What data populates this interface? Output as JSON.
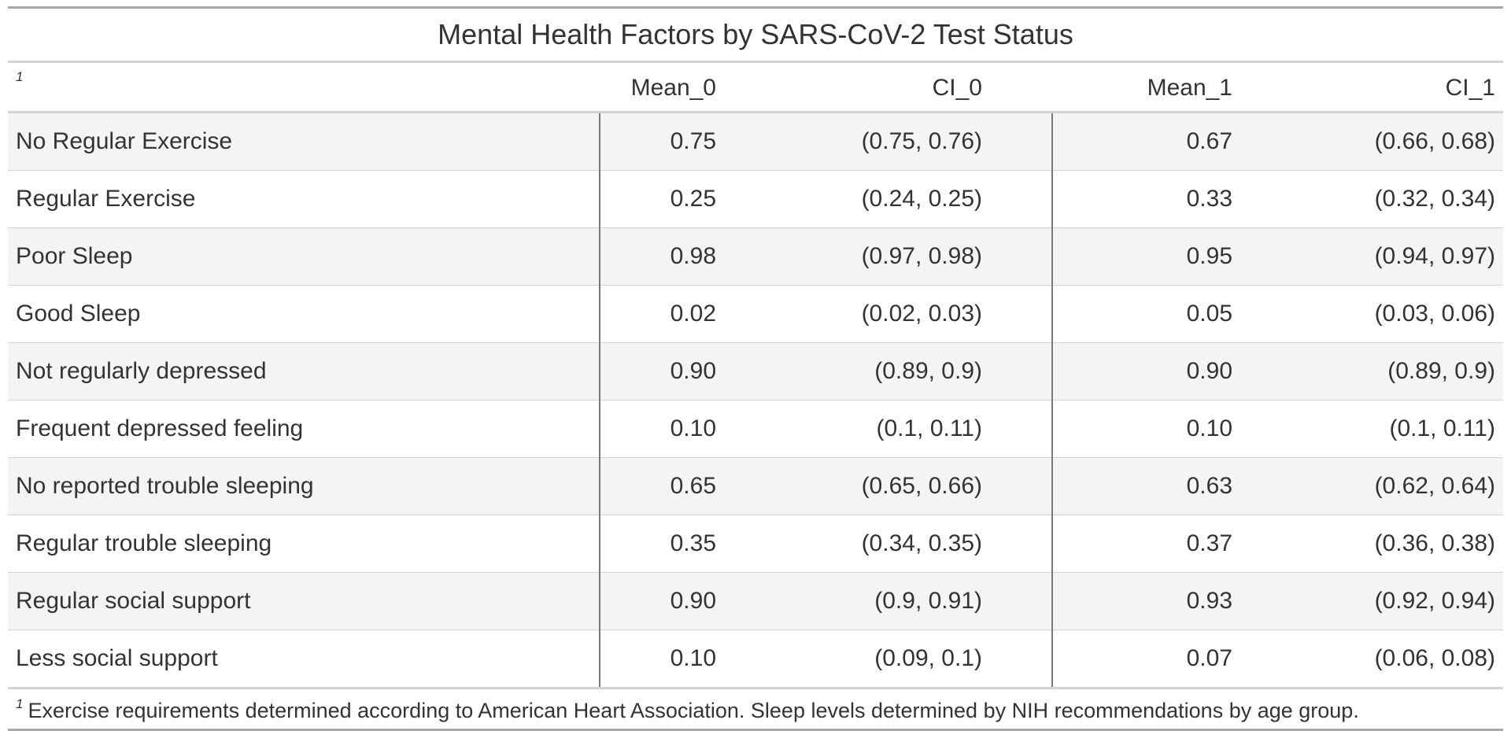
{
  "chart_data": {
    "type": "table",
    "title": "Mental Health Factors by SARS-CoV-2 Test Status",
    "header_footnote_mark": "1",
    "columns": [
      "Mean_0",
      "CI_0",
      "Mean_1",
      "CI_1"
    ],
    "rows": [
      {
        "label": "No Regular Exercise",
        "mean_0": "0.75",
        "ci_0": "(0.75, 0.76)",
        "mean_1": "0.67",
        "ci_1": "(0.66, 0.68)"
      },
      {
        "label": "Regular Exercise",
        "mean_0": "0.25",
        "ci_0": "(0.24, 0.25)",
        "mean_1": "0.33",
        "ci_1": "(0.32, 0.34)"
      },
      {
        "label": "Poor Sleep",
        "mean_0": "0.98",
        "ci_0": "(0.97, 0.98)",
        "mean_1": "0.95",
        "ci_1": "(0.94, 0.97)"
      },
      {
        "label": "Good Sleep",
        "mean_0": "0.02",
        "ci_0": "(0.02, 0.03)",
        "mean_1": "0.05",
        "ci_1": "(0.03, 0.06)"
      },
      {
        "label": "Not regularly depressed",
        "mean_0": "0.90",
        "ci_0": "(0.89, 0.9)",
        "mean_1": "0.90",
        "ci_1": "(0.89, 0.9)"
      },
      {
        "label": "Frequent depressed feeling",
        "mean_0": "0.10",
        "ci_0": "(0.1, 0.11)",
        "mean_1": "0.10",
        "ci_1": "(0.1, 0.11)"
      },
      {
        "label": "No reported trouble sleeping",
        "mean_0": "0.65",
        "ci_0": "(0.65, 0.66)",
        "mean_1": "0.63",
        "ci_1": "(0.62, 0.64)"
      },
      {
        "label": "Regular trouble sleeping",
        "mean_0": "0.35",
        "ci_0": "(0.34, 0.35)",
        "mean_1": "0.37",
        "ci_1": "(0.36, 0.38)"
      },
      {
        "label": "Regular social support",
        "mean_0": "0.90",
        "ci_0": "(0.9, 0.91)",
        "mean_1": "0.93",
        "ci_1": "(0.92, 0.94)"
      },
      {
        "label": "Less social support",
        "mean_0": "0.10",
        "ci_0": "(0.09, 0.1)",
        "mean_1": "0.07",
        "ci_1": "(0.06, 0.08)"
      }
    ],
    "footnote": {
      "mark": "1",
      "text": "Exercise requirements determined according to American Heart Association. Sleep levels determined by NIH recommendations by age group."
    }
  }
}
